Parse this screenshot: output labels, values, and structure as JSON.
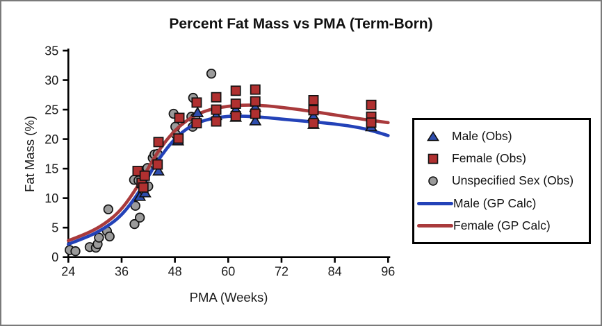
{
  "window": {
    "background": "#ffffff",
    "border_color": "#7a7a7a"
  },
  "chart_data": {
    "type": "scatter",
    "title": "Percent Fat Mass vs PMA (Term-Born)",
    "xlabel": "PMA (Weeks)",
    "ylabel": "Fat Mass (%)",
    "xlim": [
      24,
      96
    ],
    "ylim": [
      0,
      35
    ],
    "xticks": [
      24,
      36,
      48,
      60,
      72,
      84,
      96
    ],
    "yticks": [
      0,
      5,
      10,
      15,
      20,
      25,
      30,
      35
    ],
    "grid": false,
    "legend_position": "right-outside",
    "series": [
      {
        "name": "Male (Obs)",
        "kind": "scatter",
        "marker": "triangle",
        "color": "#2e4dae",
        "points": [
          [
            40.1,
            10.3
          ],
          [
            41.3,
            10.9
          ],
          [
            44.3,
            14.6
          ],
          [
            48.7,
            19.7
          ],
          [
            53.1,
            24.5
          ],
          [
            57.3,
            24.0
          ],
          [
            61.7,
            25.0
          ],
          [
            61.7,
            23.7
          ],
          [
            66.1,
            25.4
          ],
          [
            66.1,
            23.1
          ],
          [
            79.2,
            23.9
          ],
          [
            79.2,
            22.5
          ],
          [
            92.2,
            22.1
          ]
        ]
      },
      {
        "name": "Female (Obs)",
        "kind": "scatter",
        "marker": "square",
        "color": "#b03030",
        "points": [
          [
            39.6,
            14.6
          ],
          [
            40.5,
            12.6
          ],
          [
            40.9,
            11.8
          ],
          [
            41.2,
            13.8
          ],
          [
            44.1,
            15.7
          ],
          [
            44.3,
            19.5
          ],
          [
            48.8,
            20.1
          ],
          [
            49.0,
            23.6
          ],
          [
            52.9,
            26.2
          ],
          [
            52.9,
            22.7
          ],
          [
            57.3,
            27.1
          ],
          [
            57.3,
            25.0
          ],
          [
            57.3,
            23.0
          ],
          [
            61.7,
            28.2
          ],
          [
            61.7,
            26.0
          ],
          [
            61.7,
            23.9
          ],
          [
            66.1,
            28.4
          ],
          [
            66.1,
            26.4
          ],
          [
            66.1,
            24.3
          ],
          [
            79.2,
            26.6
          ],
          [
            79.2,
            24.9
          ],
          [
            79.2,
            22.7
          ],
          [
            92.2,
            25.8
          ],
          [
            92.2,
            23.8
          ],
          [
            92.2,
            22.8
          ]
        ]
      },
      {
        "name": "Unspecified Sex (Obs)",
        "kind": "scatter",
        "marker": "circle",
        "color": "#9b9b9b",
        "points": [
          [
            24.3,
            1.2
          ],
          [
            25.6,
            1.0
          ],
          [
            28.8,
            1.7
          ],
          [
            30.2,
            1.6
          ],
          [
            30.6,
            2.2
          ],
          [
            30.9,
            3.3
          ],
          [
            32.7,
            4.4
          ],
          [
            33.0,
            8.1
          ],
          [
            33.3,
            3.5
          ],
          [
            38.8,
            13.1
          ],
          [
            39.8,
            13.0
          ],
          [
            39.1,
            8.7
          ],
          [
            38.9,
            5.6
          ],
          [
            40.1,
            6.7
          ],
          [
            41.8,
            15.1
          ],
          [
            42.0,
            12.0
          ],
          [
            43.0,
            16.8
          ],
          [
            43.4,
            17.4
          ],
          [
            44.1,
            17.5
          ],
          [
            47.7,
            24.3
          ],
          [
            48.1,
            22.1
          ],
          [
            48.2,
            20.8
          ],
          [
            51.7,
            23.8
          ],
          [
            52.0,
            22.1
          ],
          [
            52.1,
            27.0
          ],
          [
            52.6,
            23.7
          ],
          [
            56.2,
            31.1
          ]
        ]
      },
      {
        "name": "Male (GP Calc)",
        "kind": "line",
        "color": "#2342b8",
        "points": [
          [
            24,
            2.2
          ],
          [
            28,
            3.3
          ],
          [
            32,
            4.8
          ],
          [
            36,
            7.0
          ],
          [
            40,
            11.0
          ],
          [
            44,
            16.3
          ],
          [
            48,
            20.2
          ],
          [
            52,
            22.5
          ],
          [
            56,
            23.5
          ],
          [
            60,
            23.9
          ],
          [
            64,
            23.9
          ],
          [
            68,
            23.7
          ],
          [
            72,
            23.4
          ],
          [
            78,
            23.0
          ],
          [
            84,
            22.6
          ],
          [
            90,
            21.9
          ],
          [
            93,
            21.3
          ],
          [
            96,
            20.6
          ]
        ]
      },
      {
        "name": "Female (GP Calc)",
        "kind": "line",
        "color": "#a93a3c",
        "points": [
          [
            24,
            2.8
          ],
          [
            28,
            3.9
          ],
          [
            32,
            5.5
          ],
          [
            36,
            8.0
          ],
          [
            40,
            12.4
          ],
          [
            44,
            17.8
          ],
          [
            48,
            21.6
          ],
          [
            52,
            23.9
          ],
          [
            56,
            25.1
          ],
          [
            60,
            25.6
          ],
          [
            64,
            25.8
          ],
          [
            68,
            25.7
          ],
          [
            72,
            25.4
          ],
          [
            78,
            24.8
          ],
          [
            84,
            24.1
          ],
          [
            90,
            23.4
          ],
          [
            96,
            22.8
          ]
        ]
      }
    ]
  },
  "legend": {
    "items": [
      {
        "label": "Male (Obs)",
        "swatch": "triangle",
        "color": "#2e4dae"
      },
      {
        "label": "Female (Obs)",
        "swatch": "square",
        "color": "#b03030"
      },
      {
        "label": "Unspecified Sex (Obs)",
        "swatch": "circle",
        "color": "#9b9b9b"
      },
      {
        "label": "Male (GP Calc)",
        "swatch": "line",
        "color": "#2342b8"
      },
      {
        "label": "Female (GP Calc)",
        "swatch": "line",
        "color": "#a93a3c"
      }
    ]
  }
}
